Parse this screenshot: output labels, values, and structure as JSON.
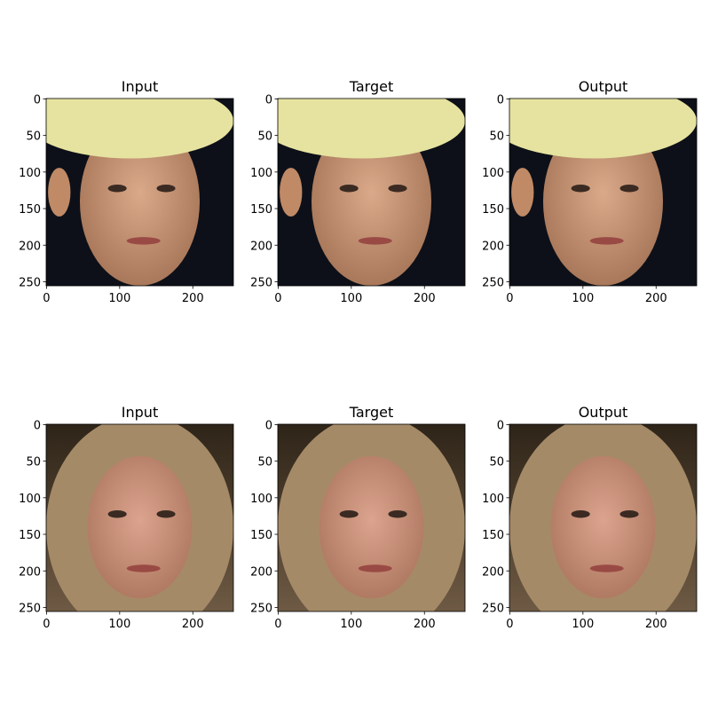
{
  "chart_data": [
    {
      "type": "image",
      "title": "Input",
      "xlim": [
        -0.5,
        255.5
      ],
      "ylim": [
        255.5,
        -0.5
      ],
      "xticks": [
        0,
        100,
        200
      ],
      "yticks": [
        0,
        50,
        100,
        150,
        200,
        250
      ]
    },
    {
      "type": "image",
      "title": "Target",
      "xlim": [
        -0.5,
        255.5
      ],
      "ylim": [
        255.5,
        -0.5
      ],
      "xticks": [
        0,
        100,
        200
      ],
      "yticks": [
        0,
        50,
        100,
        150,
        200,
        250
      ]
    },
    {
      "type": "image",
      "title": "Output",
      "xlim": [
        -0.5,
        255.5
      ],
      "ylim": [
        255.5,
        -0.5
      ],
      "xticks": [
        0,
        100,
        200
      ],
      "yticks": [
        0,
        50,
        100,
        150,
        200,
        250
      ]
    },
    {
      "type": "image",
      "title": "Input",
      "xlim": [
        -0.5,
        255.5
      ],
      "ylim": [
        255.5,
        -0.5
      ],
      "xticks": [
        0,
        100,
        200
      ],
      "yticks": [
        0,
        50,
        100,
        150,
        200,
        250
      ]
    },
    {
      "type": "image",
      "title": "Target",
      "xlim": [
        -0.5,
        255.5
      ],
      "ylim": [
        255.5,
        -0.5
      ],
      "xticks": [
        0,
        100,
        200
      ],
      "yticks": [
        0,
        50,
        100,
        150,
        200,
        250
      ]
    },
    {
      "type": "image",
      "title": "Output",
      "xlim": [
        -0.5,
        255.5
      ],
      "ylim": [
        255.5,
        -0.5
      ],
      "xticks": [
        0,
        100,
        200
      ],
      "yticks": [
        0,
        50,
        100,
        150,
        200,
        250
      ]
    }
  ]
}
